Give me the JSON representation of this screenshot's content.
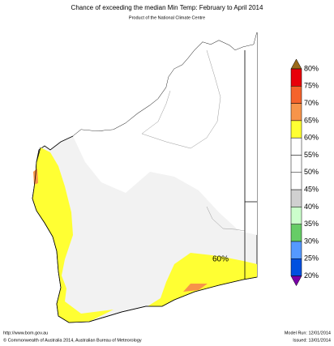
{
  "header": {
    "title": "Chance of exceeding the median Min Temp: February to April 2014",
    "subtitle": "Product of the National Climate Centre"
  },
  "legend": {
    "labels": [
      "80%",
      "75%",
      "70%",
      "65%",
      "60%",
      "55%",
      "50%",
      "45%",
      "40%",
      "35%",
      "30%",
      "25%",
      "20%"
    ],
    "colors": [
      "#9b6a1a",
      "#e8000a",
      "#f5632c",
      "#f7944a",
      "#ffff33",
      "#ffffff",
      "#ffffff",
      "#ffffff",
      "#d0d0d0",
      "#ccffcc",
      "#66cc66",
      "#5599ff",
      "#0050e0",
      "#7a00a8"
    ]
  },
  "map": {
    "annotation": "60%"
  },
  "footer": {
    "url": "http://www.bom.gov.au",
    "copyright": "©  Commonwealth of Australia 2014, Australian Bureau of Meteorology",
    "model_run": "Model Run: 12/01/2014",
    "issued": "Issued: 13/01/2014"
  }
}
